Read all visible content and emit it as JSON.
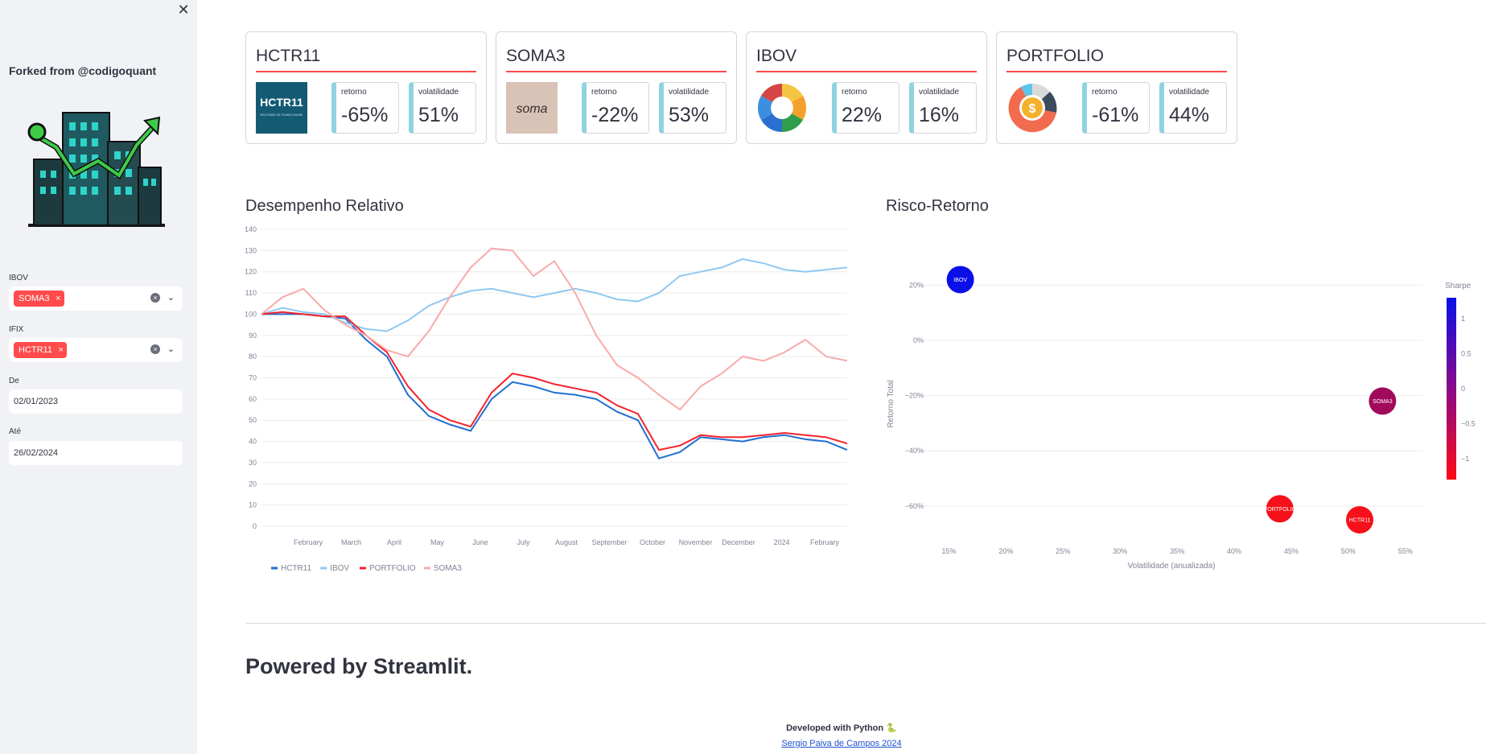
{
  "sidebar": {
    "close_icon": "close-icon",
    "forked": "Forked from @codigoquant",
    "ibov_label": "IBOV",
    "ibov_chip": "SOMA3",
    "ifix_label": "IFIX",
    "ifix_chip": "HCTR11",
    "chip_remove": "×",
    "de_label": "De",
    "de_value": "02/01/2023",
    "ate_label": "Até",
    "ate_value": "26/02/2024"
  },
  "cards": [
    {
      "title": "HCTR11",
      "retorno_label": "retorno",
      "retorno": "-65%",
      "vol_label": "volatilidade",
      "vol": "51%",
      "logo_text": "HCTR11",
      "logo_sub": "HECTARE CE FUNDO IMOB."
    },
    {
      "title": "SOMA3",
      "retorno_label": "retorno",
      "retorno": "-22%",
      "vol_label": "volatilidade",
      "vol": "53%",
      "logo_text": "soma"
    },
    {
      "title": "IBOV",
      "retorno_label": "retorno",
      "retorno": "22%",
      "vol_label": "volatilidade",
      "vol": "16%"
    },
    {
      "title": "PORTFOLIO",
      "retorno_label": "retorno",
      "retorno": "-61%",
      "vol_label": "volatilidade",
      "vol": "44%"
    }
  ],
  "sections": {
    "desempenho": "Desempenho Relativo",
    "risco": "Risco-Retorno"
  },
  "colors": {
    "HCTR11": "#1f6fd1",
    "IBOV": "#8fc8f2",
    "PORTFOLIO": "#f5222d",
    "SOMA3": "#f9aaaa",
    "accent": "#ff4b4b"
  },
  "chart_data": [
    {
      "type": "line",
      "title": "Desempenho Relativo",
      "x_ticks": [
        "February",
        "March",
        "April",
        "May",
        "June",
        "July",
        "August",
        "September",
        "October",
        "November",
        "December",
        "2024",
        "February"
      ],
      "y_ticks": [
        0,
        10,
        20,
        30,
        40,
        50,
        60,
        70,
        80,
        90,
        100,
        110,
        120,
        130,
        140
      ],
      "ylim": [
        0,
        140
      ],
      "legend": "bottom-left",
      "series": [
        {
          "name": "HCTR11",
          "values": [
            100,
            100,
            100,
            99,
            98,
            88,
            80,
            62,
            52,
            48,
            45,
            60,
            68,
            66,
            63,
            62,
            60,
            54,
            50,
            32,
            35,
            42,
            41,
            40,
            42,
            43,
            41,
            40,
            36
          ]
        },
        {
          "name": "IBOV",
          "values": [
            100,
            103,
            101,
            100,
            96,
            93,
            92,
            97,
            104,
            108,
            111,
            112,
            110,
            108,
            110,
            112,
            110,
            107,
            106,
            110,
            118,
            120,
            122,
            126,
            124,
            121,
            120,
            121,
            122
          ]
        },
        {
          "name": "PORTFOLIO",
          "values": [
            100,
            101,
            100,
            99,
            99,
            90,
            82,
            66,
            55,
            50,
            47,
            63,
            72,
            70,
            67,
            65,
            63,
            57,
            53,
            36,
            38,
            43,
            42,
            42,
            43,
            44,
            43,
            42,
            39
          ]
        },
        {
          "name": "SOMA3",
          "values": [
            100,
            108,
            112,
            102,
            95,
            90,
            83,
            80,
            92,
            108,
            122,
            131,
            130,
            118,
            125,
            110,
            90,
            76,
            70,
            62,
            55,
            66,
            72,
            80,
            78,
            82,
            88,
            80,
            78
          ]
        }
      ]
    },
    {
      "type": "scatter",
      "title": "Risco-Retorno",
      "xlabel": "Volatilidade (anualizada)",
      "ylabel": "Retorno Total",
      "x_ticks": [
        "15%",
        "20%",
        "25%",
        "30%",
        "35%",
        "40%",
        "45%",
        "50%",
        "55%"
      ],
      "x_tick_values": [
        15,
        20,
        25,
        30,
        35,
        40,
        45,
        50,
        55
      ],
      "y_ticks": [
        "20%",
        "0%",
        "−20%",
        "−40%",
        "−60%"
      ],
      "y_tick_values": [
        20,
        0,
        -20,
        -40,
        -60
      ],
      "xlim": [
        12.5,
        56.5
      ],
      "ylim": [
        -72,
        30
      ],
      "colorbar": {
        "title": "Sharpe",
        "ticks": [
          "1",
          "0.5",
          "0",
          "−0.5",
          "−1"
        ],
        "tick_values": [
          1,
          0.5,
          0,
          -0.5,
          -1
        ],
        "range": [
          -1.3,
          1.3
        ]
      },
      "points": [
        {
          "label": "IBOV",
          "x": 16,
          "y": 22,
          "sharpe": 1.3,
          "color": "#0a0fe8"
        },
        {
          "label": "SOMA3",
          "x": 53,
          "y": -22,
          "sharpe": -0.4,
          "color": "#a10a5a"
        },
        {
          "label": "PORTFOLIO",
          "x": 44,
          "y": -61,
          "sharpe": -1.3,
          "color": "#f5101a"
        },
        {
          "label": "HCTR11",
          "x": 51,
          "y": -65,
          "sharpe": -1.3,
          "color": "#f5101a"
        }
      ]
    }
  ],
  "footer": {
    "powered": "Powered by Streamlit.",
    "developed": "Developed with Python 🐍",
    "author": "Sergio Paiva de Campos 2024"
  }
}
